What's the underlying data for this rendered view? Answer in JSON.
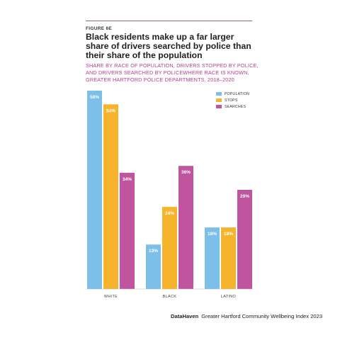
{
  "figure_label": "FIGURE 6E",
  "footer": {
    "brand": "DataHaven",
    "text": "Greater Hartford Community Wellbeing Index 2023"
  },
  "chart_data": {
    "type": "bar",
    "title": "Black residents make up a far larger share of drivers searched by police than their share of the population",
    "subtitle": "SHARE BY RACE OF POPULATION, DRIVERS STOPPED BY POLICE, AND DRIVERS SEARCHED BY POLICEWHERE RACE IS KNOWN, GREATER HARTFORD POLICE DEPARTMENTS, 2018–2020",
    "categories": [
      "WHITE",
      "BLACK",
      "LATINO"
    ],
    "series": [
      {
        "name": "POPULATION",
        "color": "#7cbfe8",
        "values": [
          58,
          13,
          18
        ]
      },
      {
        "name": "STOPS",
        "color": "#f5b42c",
        "values": [
          54,
          24,
          18
        ]
      },
      {
        "name": "SEARCHES",
        "color": "#c0549f",
        "values": [
          34,
          36,
          29
        ]
      }
    ],
    "ylim": [
      0,
      58
    ],
    "legend_position": "top-right",
    "grid": false,
    "value_label_suffix": "%"
  }
}
